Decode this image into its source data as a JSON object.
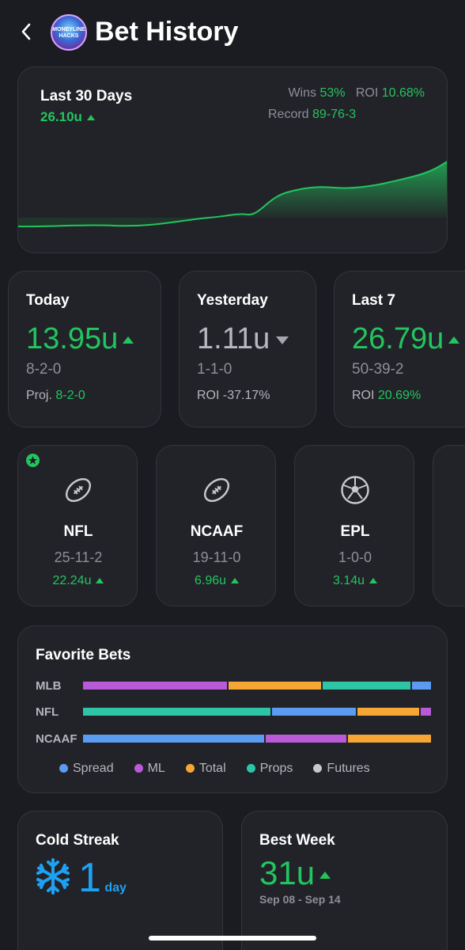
{
  "header": {
    "title": "Bet History",
    "back_icon": "chevron-left-icon",
    "logo_text": "MONEYLINE HACKS"
  },
  "summary": {
    "period": "Last 30 Days",
    "units": "26.10u",
    "wins_label": "Wins",
    "wins_value": "53%",
    "roi_label": "ROI",
    "roi_value": "10.68%",
    "record_label": "Record",
    "record_value": "89-76-3"
  },
  "periods": [
    {
      "label": "Today",
      "units": "13.95u",
      "trend": "up",
      "record": "8-2-0",
      "footer_label": "Proj.",
      "footer_value": "8-2-0"
    },
    {
      "label": "Yesterday",
      "units": "1.11u",
      "trend": "down",
      "record": "1-1-0",
      "footer_label": "ROI",
      "footer_value": "-37.17%"
    },
    {
      "label": "Last 7",
      "units": "26.79u",
      "trend": "up",
      "record": "50-39-2",
      "footer_label": "ROI",
      "footer_value": "20.69%"
    }
  ],
  "leagues": [
    {
      "name": "NFL",
      "record": "25-11-2",
      "units": "22.24u",
      "icon": "football-icon",
      "starred": true
    },
    {
      "name": "NCAAF",
      "record": "19-11-0",
      "units": "6.96u",
      "icon": "football-icon",
      "starred": false
    },
    {
      "name": "EPL",
      "record": "1-0-0",
      "units": "3.14u",
      "icon": "soccer-ball-icon",
      "starred": false
    }
  ],
  "favorite_bets": {
    "title": "Favorite Bets",
    "rows": [
      {
        "label": "MLB",
        "segments": [
          {
            "type": "ML",
            "share": 0.42
          },
          {
            "type": "Total",
            "share": 0.27
          },
          {
            "type": "Props",
            "share": 0.255
          },
          {
            "type": "Spread",
            "share": 0.055
          }
        ]
      },
      {
        "label": "NFL",
        "segments": [
          {
            "type": "Props",
            "share": 0.545
          },
          {
            "type": "Spread",
            "share": 0.245
          },
          {
            "type": "Total",
            "share": 0.18
          },
          {
            "type": "ML",
            "share": 0.03
          }
        ]
      },
      {
        "label": "NCAAF",
        "segments": [
          {
            "type": "Spread",
            "share": 0.525
          },
          {
            "type": "ML",
            "share": 0.235
          },
          {
            "type": "Total",
            "share": 0.24
          }
        ]
      }
    ],
    "legend": [
      {
        "label": "Spread",
        "color": "#5b9bf0"
      },
      {
        "label": "ML",
        "color": "#b95ad8"
      },
      {
        "label": "Total",
        "color": "#f5a634"
      },
      {
        "label": "Props",
        "color": "#2ec4a6"
      },
      {
        "label": "Futures",
        "color": "#c7c7cc"
      }
    ]
  },
  "cold_streak": {
    "title": "Cold Streak",
    "value": "1",
    "unit": "day",
    "icon": "snowflake-icon"
  },
  "best_week": {
    "title": "Best Week",
    "value": "31u",
    "range": "Sep 08 - Sep 14"
  },
  "colors": {
    "accent_green": "#22c55e",
    "snow_blue": "#1ea1f2",
    "background": "#1b1c21",
    "card": "#222329"
  }
}
